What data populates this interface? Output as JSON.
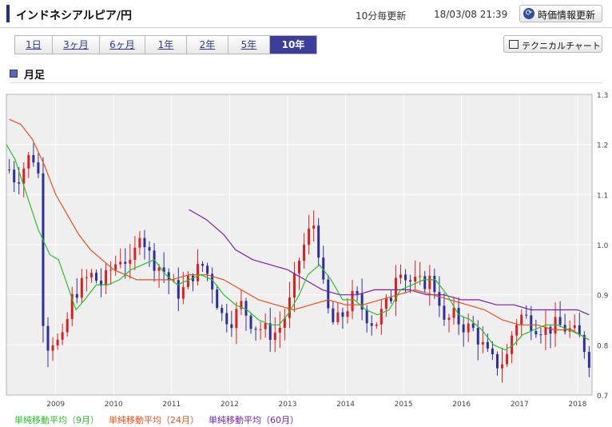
{
  "header": {
    "title": "インドネシアルピア/円",
    "update_note": "10分毎更新",
    "datetime": "18/03/08 21:39",
    "refresh_label": "時価情報更新"
  },
  "period_tabs": [
    "1日",
    "3ヶ月",
    "6ヶ月",
    "1年",
    "2年",
    "5年",
    "10年"
  ],
  "active_tab": "10年",
  "technical_chart_label": "テクニカルチャート",
  "section_title": "月足",
  "colors": {
    "up": "#dd1f1f",
    "down": "#2c2f9a",
    "ma9": "#22c422",
    "ma24": "#e8501a",
    "ma60": "#7a1fa8",
    "plot_bg": "#efefef"
  },
  "legend": [
    {
      "label": "単純移動平均（9月）",
      "color": "#22c422"
    },
    {
      "label": "単純移動平均（24月）",
      "color": "#e8501a"
    },
    {
      "label": "単純移動平均（60月）",
      "color": "#7a1fa8"
    }
  ],
  "chart_data": {
    "type": "candlestick",
    "interval": "monthly",
    "x_range": [
      2008.15,
      2018.25
    ],
    "xticks": [
      2009,
      2010,
      2011,
      2012,
      2013,
      2014,
      2015,
      2016,
      2017,
      2018
    ],
    "ylim": [
      0.7,
      1.3
    ],
    "yticks": [
      "0.7",
      "0.8",
      "0.9",
      "1.0",
      "1.1",
      "1.2",
      "1.3"
    ],
    "y_axis_side": "right",
    "grid": true,
    "close_anchors": [
      [
        2008.2,
        1.15
      ],
      [
        2008.3,
        1.13
      ],
      [
        2008.4,
        1.14
      ],
      [
        2008.5,
        1.17
      ],
      [
        2008.6,
        1.18
      ],
      [
        2008.7,
        1.14
      ],
      [
        2008.75,
        0.88
      ],
      [
        2008.85,
        0.8
      ],
      [
        2008.95,
        0.81
      ],
      [
        2009.1,
        0.8
      ],
      [
        2009.2,
        0.85
      ],
      [
        2009.3,
        0.9
      ],
      [
        2009.45,
        0.92
      ],
      [
        2009.6,
        0.94
      ],
      [
        2009.8,
        0.92
      ],
      [
        2009.95,
        0.95
      ],
      [
        2010.15,
        0.98
      ],
      [
        2010.3,
        0.95
      ],
      [
        2010.45,
        1.03
      ],
      [
        2010.65,
        0.97
      ],
      [
        2010.85,
        0.95
      ],
      [
        2011.0,
        0.92
      ],
      [
        2011.15,
        0.9
      ],
      [
        2011.35,
        0.94
      ],
      [
        2011.55,
        0.96
      ],
      [
        2011.7,
        0.92
      ],
      [
        2011.85,
        0.86
      ],
      [
        2012.05,
        0.85
      ],
      [
        2012.2,
        0.88
      ],
      [
        2012.4,
        0.84
      ],
      [
        2012.6,
        0.83
      ],
      [
        2012.75,
        0.82
      ],
      [
        2012.9,
        0.84
      ],
      [
        2013.05,
        0.89
      ],
      [
        2013.2,
        0.97
      ],
      [
        2013.35,
        1.02
      ],
      [
        2013.45,
        1.04
      ],
      [
        2013.55,
        0.98
      ],
      [
        2013.65,
        0.88
      ],
      [
        2013.8,
        0.84
      ],
      [
        2013.95,
        0.86
      ],
      [
        2014.15,
        0.9
      ],
      [
        2014.35,
        0.86
      ],
      [
        2014.5,
        0.84
      ],
      [
        2014.65,
        0.87
      ],
      [
        2014.8,
        0.9
      ],
      [
        2014.9,
        0.97
      ],
      [
        2015.05,
        0.93
      ],
      [
        2015.25,
        0.92
      ],
      [
        2015.45,
        0.93
      ],
      [
        2015.6,
        0.9
      ],
      [
        2015.7,
        0.84
      ],
      [
        2015.85,
        0.86
      ],
      [
        2016.0,
        0.84
      ],
      [
        2016.2,
        0.83
      ],
      [
        2016.35,
        0.8
      ],
      [
        2016.5,
        0.77
      ],
      [
        2016.65,
        0.76
      ],
      [
        2016.8,
        0.78
      ],
      [
        2016.9,
        0.84
      ],
      [
        2017.05,
        0.86
      ],
      [
        2017.25,
        0.84
      ],
      [
        2017.45,
        0.83
      ],
      [
        2017.65,
        0.84
      ],
      [
        2017.85,
        0.83
      ],
      [
        2018.0,
        0.82
      ],
      [
        2018.1,
        0.8
      ],
      [
        2018.2,
        0.77
      ]
    ],
    "ma9": [
      [
        2008.15,
        1.2
      ],
      [
        2008.3,
        1.17
      ],
      [
        2008.5,
        1.1
      ],
      [
        2008.7,
        1.03
      ],
      [
        2008.9,
        0.98
      ],
      [
        2009.05,
        0.97
      ],
      [
        2009.2,
        0.92
      ],
      [
        2009.35,
        0.87
      ],
      [
        2009.5,
        0.89
      ],
      [
        2009.7,
        0.92
      ],
      [
        2009.9,
        0.92
      ],
      [
        2010.1,
        0.93
      ],
      [
        2010.3,
        0.95
      ],
      [
        2010.5,
        0.96
      ],
      [
        2010.7,
        0.97
      ],
      [
        2010.9,
        0.94
      ],
      [
        2011.1,
        0.92
      ],
      [
        2011.3,
        0.93
      ],
      [
        2011.5,
        0.94
      ],
      [
        2011.7,
        0.93
      ],
      [
        2011.9,
        0.9
      ],
      [
        2012.1,
        0.88
      ],
      [
        2012.3,
        0.87
      ],
      [
        2012.5,
        0.85
      ],
      [
        2012.7,
        0.84
      ],
      [
        2012.85,
        0.84
      ],
      [
        2013.0,
        0.86
      ],
      [
        2013.2,
        0.9
      ],
      [
        2013.35,
        0.94
      ],
      [
        2013.55,
        0.96
      ],
      [
        2013.75,
        0.93
      ],
      [
        2013.95,
        0.89
      ],
      [
        2014.15,
        0.89
      ],
      [
        2014.35,
        0.87
      ],
      [
        2014.55,
        0.86
      ],
      [
        2014.75,
        0.87
      ],
      [
        2014.95,
        0.91
      ],
      [
        2015.15,
        0.92
      ],
      [
        2015.35,
        0.93
      ],
      [
        2015.55,
        0.93
      ],
      [
        2015.75,
        0.9
      ],
      [
        2015.95,
        0.86
      ],
      [
        2016.15,
        0.85
      ],
      [
        2016.35,
        0.83
      ],
      [
        2016.55,
        0.8
      ],
      [
        2016.75,
        0.79
      ],
      [
        2016.9,
        0.8
      ],
      [
        2017.05,
        0.82
      ],
      [
        2017.25,
        0.83
      ],
      [
        2017.45,
        0.84
      ],
      [
        2017.65,
        0.84
      ],
      [
        2017.85,
        0.83
      ],
      [
        2018.05,
        0.82
      ],
      [
        2018.2,
        0.81
      ]
    ],
    "ma24": [
      [
        2008.2,
        1.25
      ],
      [
        2008.4,
        1.24
      ],
      [
        2008.6,
        1.21
      ],
      [
        2008.8,
        1.16
      ],
      [
        2009.0,
        1.1
      ],
      [
        2009.2,
        1.06
      ],
      [
        2009.4,
        1.02
      ],
      [
        2009.6,
        0.99
      ],
      [
        2009.8,
        0.97
      ],
      [
        2010.0,
        0.95
      ],
      [
        2010.2,
        0.94
      ],
      [
        2010.4,
        0.93
      ],
      [
        2010.6,
        0.93
      ],
      [
        2010.8,
        0.93
      ],
      [
        2011.0,
        0.93
      ],
      [
        2011.3,
        0.94
      ],
      [
        2011.6,
        0.94
      ],
      [
        2011.9,
        0.93
      ],
      [
        2012.2,
        0.91
      ],
      [
        2012.5,
        0.89
      ],
      [
        2012.8,
        0.88
      ],
      [
        2013.1,
        0.87
      ],
      [
        2013.4,
        0.88
      ],
      [
        2013.7,
        0.89
      ],
      [
        2014.0,
        0.88
      ],
      [
        2014.3,
        0.88
      ],
      [
        2014.6,
        0.89
      ],
      [
        2014.9,
        0.9
      ],
      [
        2015.2,
        0.91
      ],
      [
        2015.5,
        0.9
      ],
      [
        2015.8,
        0.89
      ],
      [
        2016.1,
        0.88
      ],
      [
        2016.4,
        0.87
      ],
      [
        2016.7,
        0.85
      ],
      [
        2017.0,
        0.84
      ],
      [
        2017.3,
        0.84
      ],
      [
        2017.6,
        0.83
      ],
      [
        2017.9,
        0.83
      ],
      [
        2018.2,
        0.81
      ]
    ],
    "ma60": [
      [
        2011.3,
        1.07
      ],
      [
        2011.6,
        1.05
      ],
      [
        2011.9,
        1.02
      ],
      [
        2012.1,
        0.99
      ],
      [
        2012.4,
        0.97
      ],
      [
        2012.7,
        0.96
      ],
      [
        2013.0,
        0.95
      ],
      [
        2013.3,
        0.93
      ],
      [
        2013.6,
        0.91
      ],
      [
        2013.9,
        0.9
      ],
      [
        2014.2,
        0.9
      ],
      [
        2014.5,
        0.91
      ],
      [
        2014.8,
        0.91
      ],
      [
        2015.1,
        0.91
      ],
      [
        2015.4,
        0.9
      ],
      [
        2015.7,
        0.9
      ],
      [
        2016.0,
        0.89
      ],
      [
        2016.3,
        0.89
      ],
      [
        2016.6,
        0.88
      ],
      [
        2016.9,
        0.88
      ],
      [
        2017.2,
        0.87
      ],
      [
        2017.5,
        0.87
      ],
      [
        2017.8,
        0.87
      ],
      [
        2018.0,
        0.87
      ],
      [
        2018.2,
        0.86
      ]
    ]
  }
}
